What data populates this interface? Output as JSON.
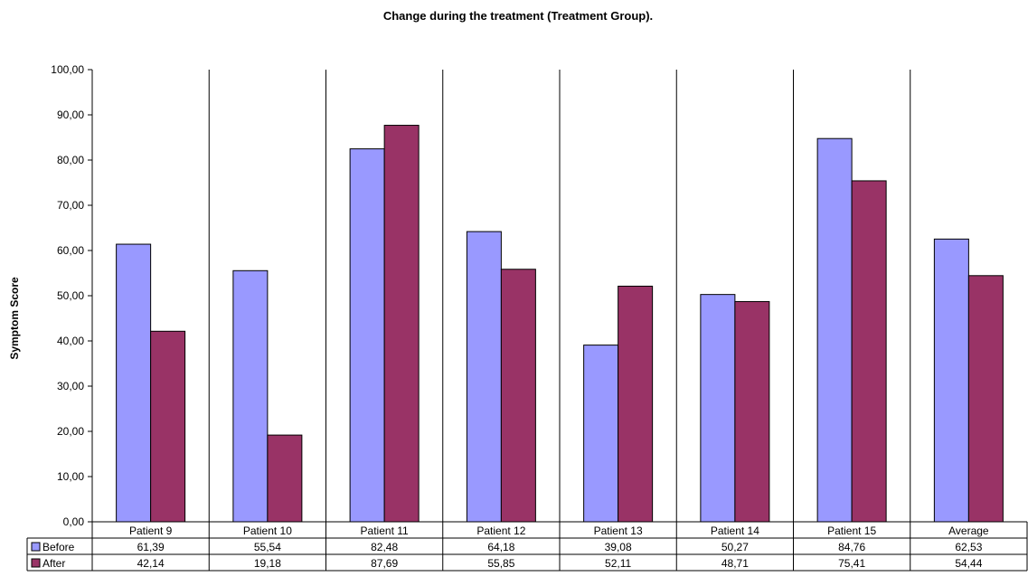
{
  "chart_data": {
    "type": "bar",
    "title": "Change during the treatment  (Treatment Group).",
    "xlabel": "",
    "ylabel": "Symptom Score",
    "ylim": [
      0,
      100
    ],
    "ytick_step": 10,
    "ytick_labels": [
      "0,00",
      "10,00",
      "20,00",
      "30,00",
      "40,00",
      "50,00",
      "60,00",
      "70,00",
      "80,00",
      "90,00",
      "100,00"
    ],
    "categories": [
      "Patient 9",
      "Patient 10",
      "Patient 11",
      "Patient 12",
      "Patient 13",
      "Patient 14",
      "Patient 15",
      "Average"
    ],
    "series": [
      {
        "name": "Before",
        "color": "#9999FF",
        "values": [
          61.39,
          55.54,
          82.48,
          64.18,
          39.08,
          50.27,
          84.76,
          62.53
        ],
        "labels": [
          "61,39",
          "55,54",
          "82,48",
          "64,18",
          "39,08",
          "50,27",
          "84,76",
          "62,53"
        ]
      },
      {
        "name": "After",
        "color": "#993366",
        "values": [
          42.14,
          19.18,
          87.69,
          55.85,
          52.11,
          48.71,
          75.41,
          54.44
        ],
        "labels": [
          "42,14",
          "19,18",
          "87,69",
          "55,85",
          "52,11",
          "48,71",
          "75,41",
          "54,44"
        ]
      }
    ],
    "data_table": true,
    "grid": "vertical-category-separators",
    "legend": "data-table-left"
  }
}
